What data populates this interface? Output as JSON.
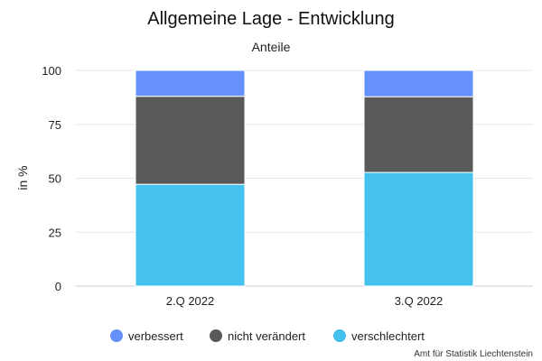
{
  "chart_data": {
    "type": "bar",
    "stacked": true,
    "title": "Allgemeine Lage - Entwicklung",
    "subtitle": "Anteile",
    "xlabel": "",
    "ylabel": "in %",
    "ylim": [
      0,
      100
    ],
    "yticks": [
      0,
      25,
      50,
      75,
      100
    ],
    "grid": true,
    "legend_position": "bottom",
    "categories": [
      "2.Q 2022",
      "3.Q 2022"
    ],
    "series": [
      {
        "name": "verschlechtert",
        "color": "#45C1EE",
        "values": [
          47.2,
          52.7
        ]
      },
      {
        "name": "nicht verändert",
        "color": "#595959",
        "values": [
          40.8,
          35.1
        ]
      },
      {
        "name": "verbessert",
        "color": "#6691FC",
        "values": [
          12.0,
          12.2
        ]
      }
    ],
    "legend_order": [
      "verbessert",
      "nicht verändert",
      "verschlechtert"
    ],
    "credit": "Amt für Statistik Liechtenstein"
  }
}
